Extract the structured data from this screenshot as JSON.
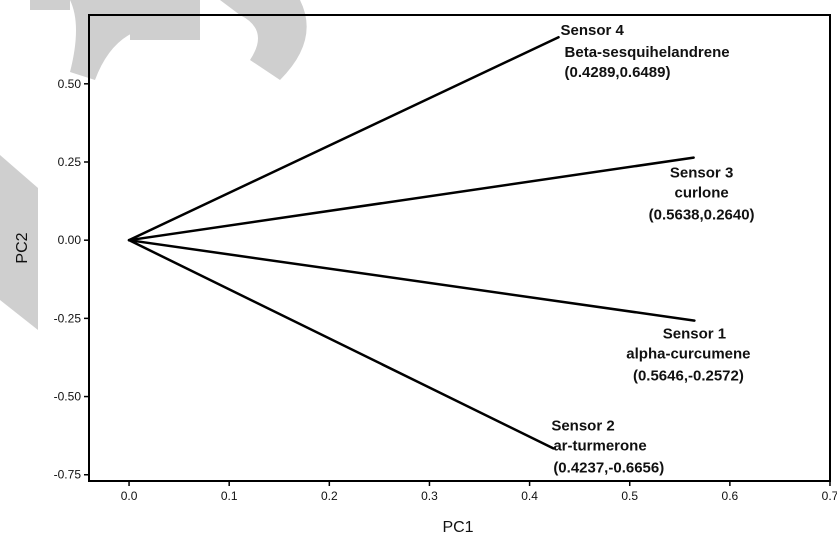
{
  "chart_data": {
    "type": "biplot",
    "xlabel": "PC1",
    "ylabel": "PC2",
    "xlim": [
      -0.04,
      0.7
    ],
    "ylim": [
      -0.77,
      0.72
    ],
    "x_ticks": [
      "0.0",
      "0.1",
      "0.2",
      "0.3",
      "0.4",
      "0.5",
      "0.6",
      "0.7"
    ],
    "y_ticks": [
      "0.50",
      "0.25",
      "0.00",
      "-0.25",
      "-0.50",
      "-0.75"
    ],
    "grid": false,
    "vectors": [
      {
        "sensor": "Sensor 4",
        "compound": "Beta-sesquihelandrene",
        "coords": "(0.4289,0.6489)",
        "x": 0.4289,
        "y": 0.6489
      },
      {
        "sensor": "Sensor 3",
        "compound": "curlone",
        "coords": "(0.5638,0.2640)",
        "x": 0.5638,
        "y": 0.264
      },
      {
        "sensor": "Sensor 1",
        "compound": "alpha-curcumene",
        "coords": "(0.5646,-0.2572)",
        "x": 0.5646,
        "y": -0.2572
      },
      {
        "sensor": "Sensor 2",
        "compound": "ar-turmerone",
        "coords": "(0.4237,-0.6656)",
        "x": 0.4237,
        "y": -0.6656
      }
    ]
  },
  "colors": {
    "line": "#000000",
    "watermark": "#cfcfcf"
  }
}
